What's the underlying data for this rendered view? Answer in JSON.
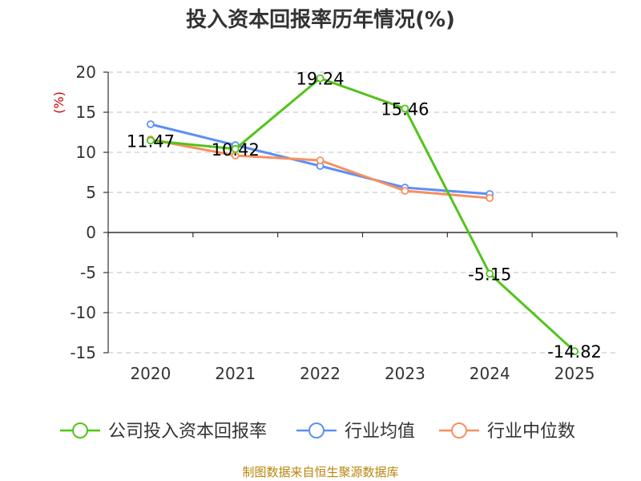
{
  "chart_data": {
    "type": "line",
    "title": "投入资本回报率历年情况(%)",
    "ylabel": "(%)",
    "xlabel": "",
    "categories": [
      "2020",
      "2021",
      "2022",
      "2023",
      "2024",
      "2025"
    ],
    "ylim": [
      -15,
      20
    ],
    "yticks": [
      20,
      15,
      10,
      5,
      0,
      -5,
      -10,
      -15
    ],
    "grid": true,
    "legend_position": "bottom",
    "series": [
      {
        "name": "公司投入资本回报率",
        "color": "#52c41a",
        "values": [
          11.47,
          10.42,
          19.24,
          15.46,
          -5.15,
          -14.82
        ],
        "labels": [
          "11.47",
          "10.42",
          "19.24",
          "15.46",
          "-5.15",
          "-14.82"
        ]
      },
      {
        "name": "行业均值",
        "color": "#5b8ff9",
        "values": [
          13.5,
          10.9,
          8.3,
          5.6,
          4.8,
          null
        ]
      },
      {
        "name": "行业中位数",
        "color": "#f6905e",
        "values": [
          11.6,
          9.6,
          9.0,
          5.2,
          4.3,
          null
        ]
      }
    ]
  },
  "source": "制图数据来自恒生聚源数据库"
}
